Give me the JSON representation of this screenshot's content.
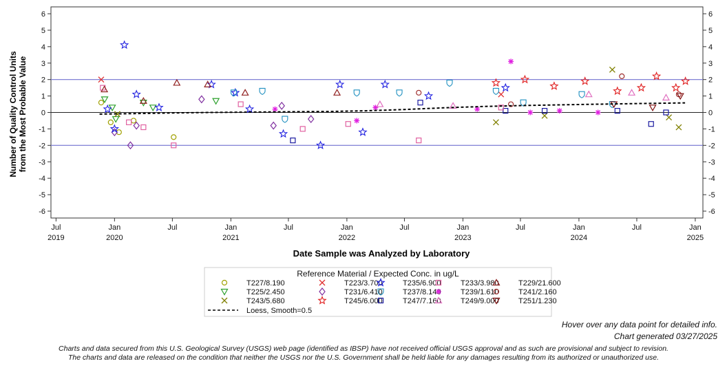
{
  "chart_data": {
    "type": "scatter",
    "title": "",
    "xlabel": "Date Sample was Analyzed by Laboratory",
    "ylabel_line1": "Number of Quality Control Units",
    "ylabel_line2": "from the Most Probable Value",
    "ylim": [
      -6,
      6
    ],
    "xlim": [
      "2019-06-15",
      "2025-01-25"
    ],
    "yticks": [
      "6",
      "5",
      "4",
      "3",
      "2",
      "1",
      "0",
      "-1",
      "-2",
      "-3",
      "-4",
      "-5",
      "-6"
    ],
    "x_ticks": [
      {
        "date": "2019-07-01",
        "label": "Jul",
        "year": "2019"
      },
      {
        "date": "2020-01-01",
        "label": "Jan",
        "year": "2020"
      },
      {
        "date": "2020-07-01",
        "label": "Jul",
        "year": ""
      },
      {
        "date": "2021-01-01",
        "label": "Jan",
        "year": "2021"
      },
      {
        "date": "2021-07-01",
        "label": "Jul",
        "year": ""
      },
      {
        "date": "2022-01-01",
        "label": "Jan",
        "year": "2022"
      },
      {
        "date": "2022-07-01",
        "label": "Jul",
        "year": ""
      },
      {
        "date": "2023-01-01",
        "label": "Jan",
        "year": "2023"
      },
      {
        "date": "2023-07-01",
        "label": "Jul",
        "year": ""
      },
      {
        "date": "2024-01-01",
        "label": "Jan",
        "year": "2024"
      },
      {
        "date": "2024-07-01",
        "label": "Jul",
        "year": ""
      },
      {
        "date": "2025-01-01",
        "label": "Jan",
        "year": "2025"
      }
    ],
    "reference_lines": [
      2,
      0,
      -2
    ],
    "legend_title": "Reference Material / Expected Conc. in ug/L",
    "series": [
      {
        "name": "T227/8.190",
        "marker": "circle",
        "color": "#a0a000",
        "points": [
          [
            "2019-11-20",
            0.6
          ],
          [
            "2019-12-20",
            -0.6
          ],
          [
            "2020-01-15",
            -1.2
          ],
          [
            "2020-03-01",
            -0.5
          ],
          [
            "2020-07-05",
            -1.5
          ]
        ]
      },
      {
        "name": "T225/2.450",
        "marker": "triangle-down",
        "color": "#2ca02c",
        "points": [
          [
            "2019-12-01",
            0.8
          ],
          [
            "2019-12-25",
            0.3
          ],
          [
            "2020-01-05",
            -0.4
          ],
          [
            "2020-04-01",
            0.6
          ],
          [
            "2020-05-01",
            0.3
          ],
          [
            "2020-11-15",
            0.7
          ]
        ]
      },
      {
        "name": "T243/5.680",
        "marker": "x",
        "color": "#808000",
        "points": [
          [
            "2020-01-10",
            -0.1
          ],
          [
            "2023-04-15",
            -0.6
          ],
          [
            "2023-09-15",
            -0.2
          ],
          [
            "2024-04-15",
            2.6
          ],
          [
            "2024-10-10",
            -0.3
          ],
          [
            "2024-11-10",
            -0.9
          ]
        ]
      },
      {
        "name": "T223/3.700",
        "marker": "x",
        "color": "#e03030",
        "points": [
          [
            "2019-11-20",
            2.0
          ],
          [
            "2023-05-01",
            1.1
          ]
        ]
      },
      {
        "name": "T231/6.410",
        "marker": "diamond",
        "color": "#8030a0",
        "points": [
          [
            "2020-01-01",
            -1.2
          ],
          [
            "2020-02-20",
            -2.0
          ],
          [
            "2020-03-10",
            -0.8
          ],
          [
            "2020-10-01",
            0.8
          ],
          [
            "2021-05-15",
            -0.8
          ],
          [
            "2021-06-10",
            0.4
          ],
          [
            "2021-09-10",
            -0.4
          ]
        ]
      },
      {
        "name": "T245/6.000",
        "marker": "star",
        "color": "#e02020",
        "points": [
          [
            "2023-04-15",
            1.8
          ],
          [
            "2023-07-15",
            2.0
          ],
          [
            "2023-10-15",
            1.6
          ],
          [
            "2024-01-20",
            1.9
          ],
          [
            "2024-05-01",
            1.3
          ],
          [
            "2024-07-15",
            1.5
          ],
          [
            "2024-09-01",
            2.2
          ],
          [
            "2024-11-01",
            1.5
          ],
          [
            "2024-12-01",
            1.9
          ]
        ]
      },
      {
        "name": "T235/6.900",
        "marker": "star",
        "color": "#2020e0",
        "points": [
          [
            "2019-12-10",
            0.2
          ],
          [
            "2020-01-01",
            -1.0
          ],
          [
            "2020-02-01",
            4.1
          ],
          [
            "2020-03-10",
            1.1
          ],
          [
            "2020-05-20",
            0.3
          ],
          [
            "2020-11-01",
            1.7
          ],
          [
            "2021-01-15",
            1.2
          ],
          [
            "2021-03-01",
            0.2
          ],
          [
            "2021-06-15",
            -1.3
          ],
          [
            "2021-10-10",
            -2.0
          ],
          [
            "2021-12-10",
            1.7
          ],
          [
            "2022-02-20",
            -1.2
          ],
          [
            "2022-05-01",
            1.7
          ],
          [
            "2022-09-15",
            1.0
          ],
          [
            "2023-05-15",
            1.5
          ]
        ]
      },
      {
        "name": "T237/8.140",
        "marker": "shield",
        "color": "#2090c0",
        "points": [
          [
            "2021-01-10",
            1.2
          ],
          [
            "2021-04-10",
            1.3
          ],
          [
            "2021-06-20",
            -0.4
          ],
          [
            "2022-02-01",
            1.2
          ],
          [
            "2022-06-15",
            1.2
          ],
          [
            "2022-11-20",
            1.8
          ],
          [
            "2023-04-15",
            1.3
          ],
          [
            "2023-07-10",
            0.6
          ],
          [
            "2024-01-10",
            1.1
          ],
          [
            "2024-04-15",
            0.5
          ]
        ]
      },
      {
        "name": "T247/7.160",
        "marker": "square",
        "color": "#1a1aa0",
        "points": [
          [
            "2021-07-15",
            -1.7
          ],
          [
            "2022-08-20",
            0.6
          ],
          [
            "2023-05-15",
            0.1
          ],
          [
            "2023-09-15",
            0.1
          ],
          [
            "2024-05-01",
            0.1
          ],
          [
            "2024-08-15",
            -0.7
          ],
          [
            "2024-10-01",
            0.0
          ]
        ]
      },
      {
        "name": "T233/3.980",
        "marker": "square",
        "color": "#e060a0",
        "points": [
          [
            "2019-11-25",
            1.5
          ],
          [
            "2020-02-15",
            -0.6
          ],
          [
            "2020-04-01",
            -0.9
          ],
          [
            "2020-07-05",
            -2.0
          ],
          [
            "2021-02-01",
            0.5
          ],
          [
            "2021-08-15",
            -1.0
          ],
          [
            "2022-01-05",
            -0.7
          ],
          [
            "2022-08-15",
            -1.7
          ],
          [
            "2023-05-01",
            0.3
          ]
        ]
      },
      {
        "name": "T239/1.610",
        "marker": "asterisk",
        "color": "#e020e0",
        "points": [
          [
            "2021-05-20",
            0.2
          ],
          [
            "2022-02-01",
            -0.5
          ],
          [
            "2022-04-01",
            0.3
          ],
          [
            "2023-02-15",
            0.2
          ],
          [
            "2023-06-01",
            3.1
          ],
          [
            "2023-08-01",
            0.0
          ],
          [
            "2023-11-01",
            0.1
          ],
          [
            "2024-03-01",
            0.0
          ]
        ]
      },
      {
        "name": "T249/9.000",
        "marker": "triangle",
        "color": "#e070c0",
        "points": [
          [
            "2022-04-15",
            0.5
          ],
          [
            "2022-12-01",
            0.4
          ],
          [
            "2024-02-01",
            1.1
          ],
          [
            "2024-06-15",
            1.2
          ],
          [
            "2024-10-01",
            0.9
          ]
        ]
      },
      {
        "name": "T229/21.600",
        "marker": "triangle",
        "color": "#902020",
        "points": [
          [
            "2019-11-30",
            1.4
          ],
          [
            "2020-04-01",
            0.7
          ],
          [
            "2020-07-15",
            1.8
          ],
          [
            "2020-10-20",
            1.7
          ],
          [
            "2021-02-15",
            1.2
          ],
          [
            "2021-12-01",
            1.2
          ]
        ]
      },
      {
        "name": "T241/2.160",
        "marker": "circle",
        "color": "#a03030",
        "points": [
          [
            "2022-08-15",
            1.2
          ],
          [
            "2023-06-01",
            0.5
          ],
          [
            "2024-05-15",
            2.2
          ],
          [
            "2024-11-10",
            1.1
          ]
        ]
      },
      {
        "name": "T251/1.230",
        "marker": "triangle-down",
        "color": "#801010",
        "points": [
          [
            "2024-04-20",
            0.5
          ],
          [
            "2024-08-20",
            0.3
          ],
          [
            "2024-11-15",
            1.0
          ]
        ]
      }
    ],
    "loess": {
      "name": "Loess, Smooth=0.5",
      "points": [
        [
          "2019-11-15",
          -0.1
        ],
        [
          "2020-03-01",
          -0.07
        ],
        [
          "2020-07-01",
          -0.03
        ],
        [
          "2020-11-01",
          0.0
        ],
        [
          "2021-03-01",
          0.02
        ],
        [
          "2021-07-01",
          0.04
        ],
        [
          "2021-11-01",
          0.06
        ],
        [
          "2022-03-01",
          0.1
        ],
        [
          "2022-07-01",
          0.18
        ],
        [
          "2022-11-01",
          0.28
        ],
        [
          "2023-03-01",
          0.36
        ],
        [
          "2023-07-01",
          0.42
        ],
        [
          "2023-11-01",
          0.46
        ],
        [
          "2024-03-01",
          0.5
        ],
        [
          "2024-07-01",
          0.54
        ],
        [
          "2024-11-30",
          0.58
        ]
      ]
    }
  },
  "footer": {
    "hover_note": "Hover over any data point for detailed info.",
    "generated": "Chart generated 03/27/2025",
    "disclaimer_line1": "Charts and data secured from this U.S. Geological Survey (USGS) web page (identified as IBSP) have not received official USGS approval and as such are provisional and subject to revision.",
    "disclaimer_line2": "The charts and data are released on the condition that neither the USGS nor the U.S. Government shall be held liable for any damages resulting from its authorized or unauthorized use."
  }
}
